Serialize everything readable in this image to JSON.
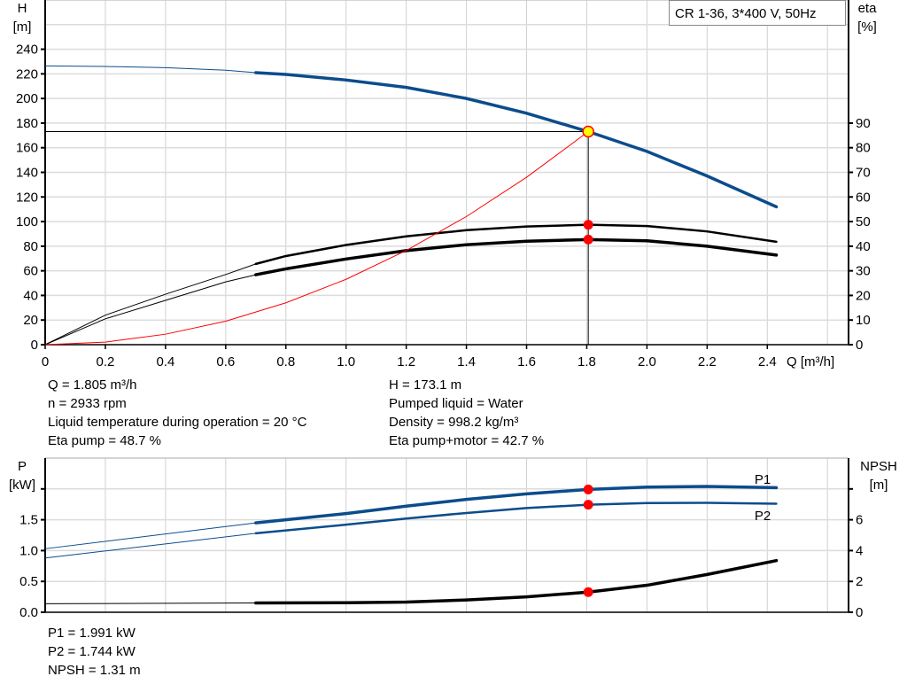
{
  "chart_data": [
    {
      "type": "line",
      "title": "CR 1-36, 3*400 V, 50Hz",
      "xlabel": "Q [m³/h]",
      "ylabel_left": [
        "H",
        "[m]"
      ],
      "ylabel_right": [
        "eta",
        "[%]"
      ],
      "xlim": [
        0,
        2.67
      ],
      "ylim_left": [
        0,
        280
      ],
      "ylim_right": [
        0,
        140
      ],
      "grid": true,
      "x_ticks": [
        "0",
        "0.2",
        "0.4",
        "0.6",
        "0.8",
        "1.0",
        "1.2",
        "1.4",
        "1.6",
        "1.8",
        "2.0",
        "2.2",
        "2.4"
      ],
      "y_left_ticks": [
        "0",
        "20",
        "40",
        "60",
        "80",
        "100",
        "120",
        "140",
        "160",
        "180",
        "200",
        "220",
        "240"
      ],
      "y_right_ticks": [
        "0",
        "10",
        "20",
        "30",
        "40",
        "50",
        "60",
        "70",
        "80",
        "90"
      ],
      "series": [
        {
          "key": "H",
          "axis": "left",
          "color": "#0b4c8c",
          "x": [
            0,
            0.2,
            0.4,
            0.6,
            0.7,
            0.8,
            1.0,
            1.2,
            1.4,
            1.6,
            1.805,
            2.0,
            2.2,
            2.43
          ],
          "y": [
            226.5,
            226,
            225,
            223,
            221,
            219.5,
            215,
            209,
            200,
            188,
            173.1,
            157,
            137,
            112
          ]
        },
        {
          "key": "eta_pump",
          "axis": "right",
          "color": "#000000",
          "x": [
            0,
            0.2,
            0.4,
            0.6,
            0.7,
            0.8,
            1.0,
            1.2,
            1.4,
            1.6,
            1.805,
            2.0,
            2.2,
            2.43
          ],
          "y": [
            0,
            12,
            20.5,
            28.5,
            32.8,
            36,
            40.5,
            44,
            46.5,
            48,
            48.7,
            48.2,
            46,
            41.8
          ]
        },
        {
          "key": "eta_pump_motor",
          "axis": "right",
          "color": "#000000",
          "x": [
            0,
            0.2,
            0.4,
            0.6,
            0.7,
            0.8,
            1.0,
            1.2,
            1.4,
            1.6,
            1.805,
            2.0,
            2.2,
            2.43
          ],
          "y": [
            0,
            10.5,
            18,
            25.5,
            28.4,
            30.8,
            34.8,
            38.2,
            40.6,
            42,
            42.7,
            42.2,
            40,
            36.4
          ]
        },
        {
          "key": "system",
          "axis": "left",
          "color": "#ff0000",
          "x": [
            0,
            0.2,
            0.4,
            0.6,
            0.8,
            1.0,
            1.2,
            1.4,
            1.6,
            1.805
          ],
          "y": [
            0,
            2.1,
            8.5,
            19.1,
            34,
            53.1,
            76.5,
            104.1,
            136,
            173.1
          ]
        }
      ],
      "duty_point": {
        "Q": 1.805,
        "H": 173.1,
        "eta_pump": 48.7,
        "eta_pump_motor": 42.7
      },
      "thin_below_Q": 0.7,
      "annotations": [
        "Q = 1.805 m³/h",
        "n = 2933 rpm",
        "Liquid temperature during operation = 20 °C",
        "Eta pump = 48.7 %",
        "H = 173.1 m",
        "Pumped liquid = Water",
        "Density = 998.2 kg/m³",
        "Eta pump+motor = 42.7 %"
      ]
    },
    {
      "type": "line",
      "ylabel_left": [
        "P",
        "[kW]"
      ],
      "ylabel_right": [
        "NPSH",
        "[m]"
      ],
      "xlim": [
        0,
        2.67
      ],
      "ylim_left": [
        0,
        2.5
      ],
      "ylim_right": [
        0,
        10
      ],
      "grid": true,
      "y_left_ticks": [
        "0.0",
        "0.5",
        "1.0",
        "1.5"
      ],
      "y_right_ticks": [
        "0",
        "2",
        "4",
        "6"
      ],
      "series": [
        {
          "key": "P1",
          "name": "P1",
          "axis": "left",
          "color": "#0b4c8c",
          "x": [
            0,
            0.7,
            1.0,
            1.2,
            1.4,
            1.6,
            1.805,
            2.0,
            2.2,
            2.43
          ],
          "y": [
            1.03,
            1.45,
            1.6,
            1.72,
            1.83,
            1.92,
            1.991,
            2.03,
            2.04,
            2.02
          ]
        },
        {
          "key": "P2",
          "name": "P2",
          "axis": "left",
          "color": "#0b4c8c",
          "x": [
            0,
            0.7,
            1.0,
            1.2,
            1.4,
            1.6,
            1.805,
            2.0,
            2.2,
            2.43
          ],
          "y": [
            0.88,
            1.28,
            1.42,
            1.52,
            1.61,
            1.69,
            1.744,
            1.77,
            1.775,
            1.76
          ]
        },
        {
          "key": "NPSH",
          "axis": "right",
          "color": "#000000",
          "x": [
            0,
            0.7,
            1.0,
            1.2,
            1.4,
            1.6,
            1.805,
            2.0,
            2.2,
            2.43
          ],
          "y": [
            0.55,
            0.6,
            0.62,
            0.66,
            0.8,
            1.0,
            1.31,
            1.75,
            2.45,
            3.35
          ]
        }
      ],
      "duty_point": {
        "Q": 1.805,
        "P1": 1.991,
        "P2": 1.744,
        "NPSH": 1.31
      },
      "annotations": [
        "P1 = 1.991 kW",
        "P2 = 1.744 kW",
        "NPSH = 1.31 m"
      ]
    }
  ]
}
